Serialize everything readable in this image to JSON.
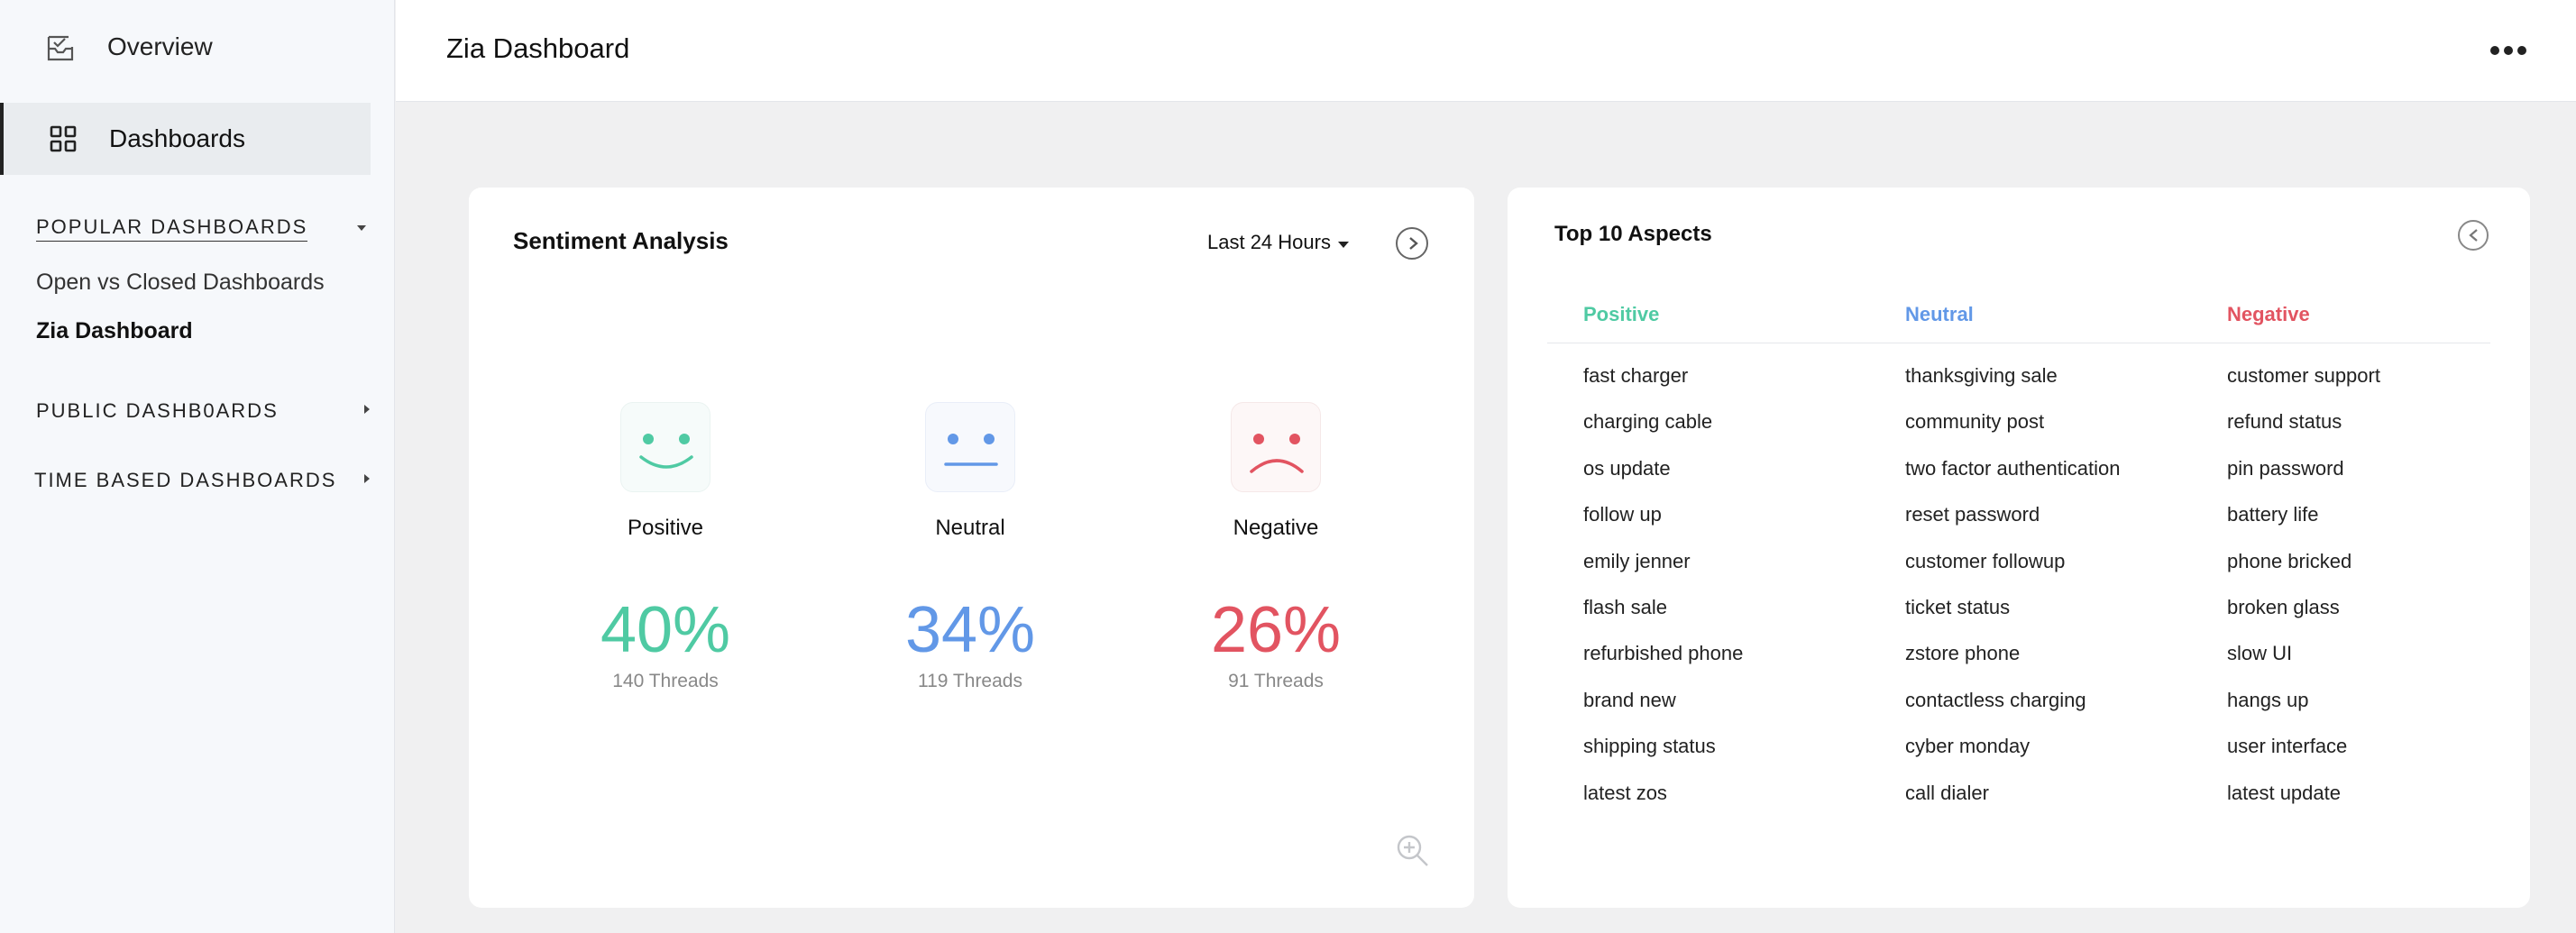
{
  "header": {
    "title": "Zia Dashboard"
  },
  "sidebar": {
    "overview_label": "Overview",
    "dashboards_label": "Dashboards",
    "sections": [
      {
        "label": "POPULAR DASHBOARDS"
      },
      {
        "label": "PUBLIC DASHB0ARDS"
      },
      {
        "label": "TIME BASED DASHBOARDS"
      }
    ],
    "popular_items": [
      "Open vs Closed Dashboards",
      "Zia Dashboard"
    ]
  },
  "sentiment": {
    "title": "Sentiment Analysis",
    "range_label": "Last 24 Hours",
    "items": [
      {
        "label": "Positive",
        "percent": "40%",
        "threads": "140 Threads",
        "color": "#4fcaa3"
      },
      {
        "label": "Neutral",
        "percent": "34%",
        "threads": "119 Threads",
        "color": "#6298e7"
      },
      {
        "label": "Negative",
        "percent": "26%",
        "threads": "91 Threads",
        "color": "#e25461"
      }
    ]
  },
  "aspects": {
    "title": "Top 10 Aspects",
    "columns": [
      {
        "header": "Positive",
        "color": "#4fcaa3",
        "items": [
          "fast charger",
          "charging cable",
          "os update",
          "follow up",
          "emily jenner",
          "flash sale",
          "refurbished phone",
          "brand new",
          "shipping status",
          "latest zos"
        ]
      },
      {
        "header": "Neutral",
        "color": "#6298e7",
        "items": [
          "thanksgiving sale",
          "community post",
          "two factor authentication",
          "reset password",
          "customer followup",
          "ticket status",
          "zstore phone",
          "contactless charging",
          "cyber monday",
          "call dialer"
        ]
      },
      {
        "header": "Negative",
        "color": "#e25461",
        "items": [
          "customer support",
          "refund status",
          "pin password",
          "battery life",
          "phone bricked",
          "broken glass",
          "slow UI",
          "hangs up",
          "user interface",
          "latest update"
        ]
      }
    ]
  }
}
